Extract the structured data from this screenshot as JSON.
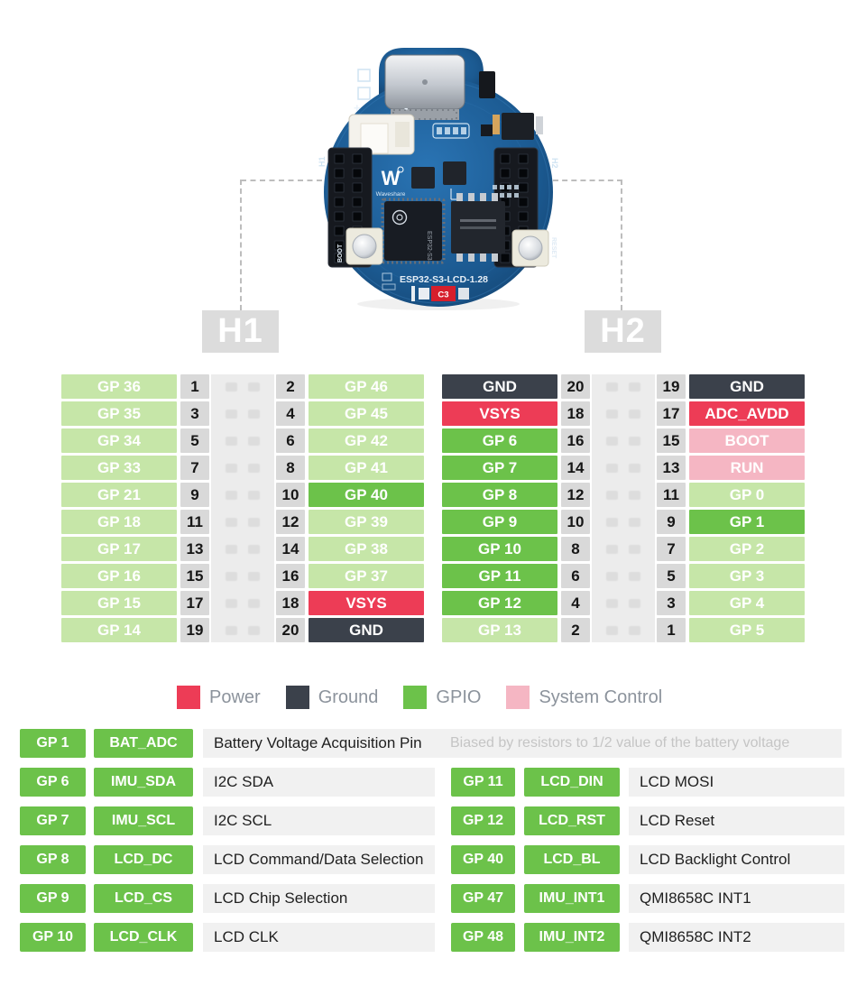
{
  "board": {
    "silk_title": "ESP32-S3-LCD-1.28",
    "logo_mark": "W",
    "logo_text": "Waveshare",
    "boot_silk": "BOOT",
    "reset_silk": "RESET",
    "h1_silk": "H1",
    "h2_silk": "H2",
    "c3_marker": "C3",
    "chip_label": "ESP32-S3",
    "battery_plus": "+",
    "battery_minus": "-"
  },
  "connectors": {
    "h1": {
      "label": "H1",
      "rows": [
        {
          "l": "GP 36",
          "lt": "f",
          "ln": "1",
          "rn": "2",
          "r": "GP 46",
          "rt": "f"
        },
        {
          "l": "GP 35",
          "lt": "f",
          "ln": "3",
          "rn": "4",
          "r": "GP 45",
          "rt": "f"
        },
        {
          "l": "GP 34",
          "lt": "f",
          "ln": "5",
          "rn": "6",
          "r": "GP 42",
          "rt": "f"
        },
        {
          "l": "GP 33",
          "lt": "f",
          "ln": "7",
          "rn": "8",
          "r": "GP 41",
          "rt": "f"
        },
        {
          "l": "GP 21",
          "lt": "f",
          "ln": "9",
          "rn": "10",
          "r": "GP 40",
          "rt": "g"
        },
        {
          "l": "GP 18",
          "lt": "f",
          "ln": "11",
          "rn": "12",
          "r": "GP 39",
          "rt": "f"
        },
        {
          "l": "GP 17",
          "lt": "f",
          "ln": "13",
          "rn": "14",
          "r": "GP 38",
          "rt": "f"
        },
        {
          "l": "GP 16",
          "lt": "f",
          "ln": "15",
          "rn": "16",
          "r": "GP 37",
          "rt": "f"
        },
        {
          "l": "GP 15",
          "lt": "f",
          "ln": "17",
          "rn": "18",
          "r": "VSYS",
          "rt": "p"
        },
        {
          "l": "GP 14",
          "lt": "f",
          "ln": "19",
          "rn": "20",
          "r": "GND",
          "rt": "d"
        }
      ]
    },
    "h2": {
      "label": "H2",
      "rows": [
        {
          "l": "GND",
          "lt": "d",
          "ln": "20",
          "rn": "19",
          "r": "GND",
          "rt": "d"
        },
        {
          "l": "VSYS",
          "lt": "p",
          "ln": "18",
          "rn": "17",
          "r": "ADC_AVDD",
          "rt": "p"
        },
        {
          "l": "GP 6",
          "lt": "g",
          "ln": "16",
          "rn": "15",
          "r": "BOOT",
          "rt": "s"
        },
        {
          "l": "GP 7",
          "lt": "g",
          "ln": "14",
          "rn": "13",
          "r": "RUN",
          "rt": "s"
        },
        {
          "l": "GP 8",
          "lt": "g",
          "ln": "12",
          "rn": "11",
          "r": "GP 0",
          "rt": "f"
        },
        {
          "l": "GP 9",
          "lt": "g",
          "ln": "10",
          "rn": "9",
          "r": "GP 1",
          "rt": "g"
        },
        {
          "l": "GP 10",
          "lt": "g",
          "ln": "8",
          "rn": "7",
          "r": "GP 2",
          "rt": "f"
        },
        {
          "l": "GP 11",
          "lt": "g",
          "ln": "6",
          "rn": "5",
          "r": "GP 3",
          "rt": "f"
        },
        {
          "l": "GP 12",
          "lt": "g",
          "ln": "4",
          "rn": "3",
          "r": "GP 4",
          "rt": "f"
        },
        {
          "l": "GP 13",
          "lt": "f",
          "ln": "2",
          "rn": "1",
          "r": "GP 5",
          "rt": "f"
        }
      ]
    }
  },
  "colors": {
    "power": "#ED3C56",
    "ground": "#3B414B",
    "gpio": "#6CC24A",
    "gpio_free": "#C6E6A8",
    "system_control": "#F5B6C3"
  },
  "legend": {
    "items": [
      {
        "label": "Power",
        "type": "p"
      },
      {
        "label": "Ground",
        "type": "d"
      },
      {
        "label": "GPIO",
        "type": "g"
      },
      {
        "label": "System Control",
        "type": "s"
      }
    ]
  },
  "functions": {
    "row1": {
      "pin": "GP 1",
      "name": "BAT_ADC",
      "desc": "Battery Voltage Acquisition Pin",
      "note": "Biased by resistors to 1/2 value of the battery voltage"
    },
    "left": [
      {
        "pin": "GP 6",
        "name": "IMU_SDA",
        "desc": "I2C SDA"
      },
      {
        "pin": "GP 7",
        "name": "IMU_SCL",
        "desc": "I2C SCL"
      },
      {
        "pin": "GP 8",
        "name": "LCD_DC",
        "desc": "LCD Command/Data Selection"
      },
      {
        "pin": "GP 9",
        "name": "LCD_CS",
        "desc": "LCD Chip Selection"
      },
      {
        "pin": "GP 10",
        "name": "LCD_CLK",
        "desc": "LCD CLK"
      }
    ],
    "right": [
      {
        "pin": "GP 11",
        "name": "LCD_DIN",
        "desc": "LCD MOSI"
      },
      {
        "pin": "GP 12",
        "name": "LCD_RST",
        "desc": "LCD Reset"
      },
      {
        "pin": "GP 40",
        "name": "LCD_BL",
        "desc": "LCD Backlight Control"
      },
      {
        "pin": "GP 47",
        "name": "IMU_INT1",
        "desc": "QMI8658C INT1"
      },
      {
        "pin": "GP 48",
        "name": "IMU_INT2",
        "desc": "QMI8658C INT2"
      }
    ]
  }
}
